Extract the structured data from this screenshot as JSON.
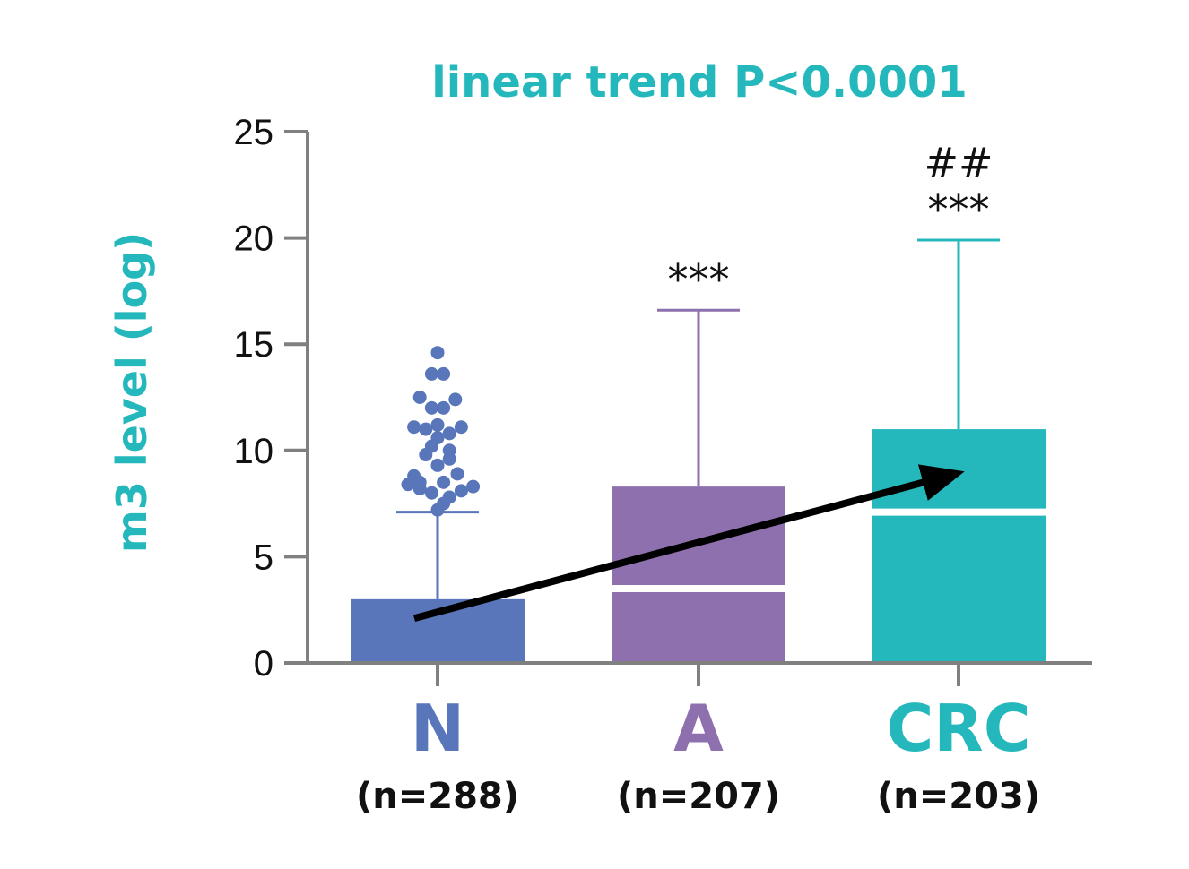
{
  "chart_data": {
    "type": "box",
    "title": "linear trend P<0.0001",
    "ylabel": "m3 level (log)",
    "xlabel": "",
    "ylim": [
      0,
      25
    ],
    "yticks": [
      0,
      5,
      10,
      15,
      20,
      25
    ],
    "categories": [
      "N",
      "A",
      "CRC"
    ],
    "sample_sizes": [
      "(n=288)",
      "(n=207)",
      "(n=203)"
    ],
    "colors": [
      "#5876b9",
      "#8e70ae",
      "#24b8bc"
    ],
    "title_color": "#24b8bc",
    "ylabel_color": "#24b8bc",
    "boxes": [
      {
        "name": "N",
        "q1": 0,
        "median": 0,
        "q3": 3.0,
        "whisker_low": 0,
        "whisker_high": 7.1,
        "significance": []
      },
      {
        "name": "A",
        "q1": 0,
        "median": 3.5,
        "q3": 8.3,
        "whisker_low": 0,
        "whisker_high": 16.6,
        "significance": [
          "***"
        ]
      },
      {
        "name": "CRC",
        "q1": 0,
        "median": 7.1,
        "q3": 11.0,
        "whisker_low": 0,
        "whisker_high": 19.9,
        "significance": [
          "##",
          "***"
        ]
      }
    ],
    "outliers": {
      "category": "N",
      "values": [
        14.6,
        13.6,
        13.6,
        12.5,
        12.4,
        12.0,
        12.0,
        11.2,
        11.1,
        11.1,
        11.0,
        10.8,
        10.6,
        10.2,
        10.0,
        9.8,
        9.6,
        9.3,
        8.9,
        8.8,
        8.5,
        8.5,
        8.4,
        8.3,
        8.2,
        8.1,
        8.0,
        7.8,
        7.5,
        7.2
      ],
      "offsets": [
        0,
        -0.3,
        0.3,
        -0.9,
        0.9,
        -0.3,
        0.3,
        0,
        -1.2,
        1.2,
        -0.6,
        0.6,
        0,
        -0.3,
        0.6,
        -0.6,
        0.6,
        0,
        1.0,
        -1.2,
        0.3,
        -0.9,
        -1.5,
        1.8,
        -0.9,
        1.2,
        -0.3,
        0.6,
        0.3,
        0
      ]
    },
    "trend_arrow": {
      "from": {
        "category": "N",
        "y": 2.1
      },
      "to": {
        "category": "CRC",
        "y": 8.6
      }
    }
  }
}
